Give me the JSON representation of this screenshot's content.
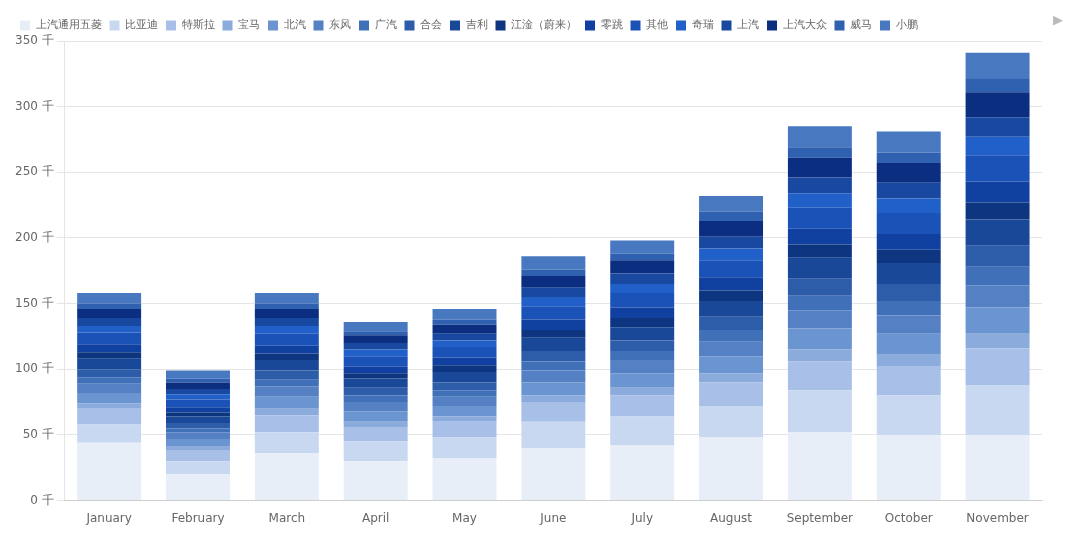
{
  "chart_data": {
    "type": "bar",
    "stacked": true,
    "categories": [
      "January",
      "February",
      "March",
      "April",
      "May",
      "June",
      "July",
      "August",
      "September",
      "October",
      "November"
    ],
    "series": [
      {
        "name": "上汽通用五菱",
        "color": "#e8eef8",
        "values": [
          44,
          20,
          36,
          30,
          32,
          40,
          42,
          48,
          52,
          50,
          50
        ]
      },
      {
        "name": "比亚迪",
        "color": "#c8d8f0",
        "values": [
          14,
          10,
          16,
          15,
          16,
          20,
          22,
          24,
          32,
          30,
          38
        ]
      },
      {
        "name": "特斯拉",
        "color": "#a8c0e8",
        "values": [
          12,
          8,
          13,
          11,
          12,
          15,
          16,
          18,
          22,
          22,
          28
        ]
      },
      {
        "name": "宝马",
        "color": "#8aabdc",
        "values": [
          4,
          3,
          5,
          4,
          4,
          5,
          6,
          7,
          9,
          9,
          11
        ]
      },
      {
        "name": "北汽",
        "color": "#6b95d0",
        "values": [
          8,
          6,
          9,
          8,
          8,
          10,
          11,
          13,
          16,
          16,
          20
        ]
      },
      {
        "name": "东风",
        "color": "#5580c4",
        "values": [
          7,
          5,
          8,
          7,
          7,
          9,
          10,
          11,
          14,
          14,
          17
        ]
      },
      {
        "name": "广汽",
        "color": "#4070b8",
        "values": [
          5,
          3,
          5,
          5,
          5,
          7,
          7,
          9,
          11,
          11,
          14
        ]
      },
      {
        "name": "合会",
        "color": "#2d5da8",
        "values": [
          6,
          4,
          7,
          6,
          6,
          8,
          8,
          10,
          13,
          13,
          16
        ]
      },
      {
        "name": "吉利",
        "color": "#1a4898",
        "values": [
          8,
          5,
          8,
          7,
          8,
          10,
          10,
          12,
          16,
          16,
          20
        ]
      },
      {
        "name": "江淦（蔚来）",
        "color": "#0d3580",
        "values": [
          5,
          3,
          5,
          4,
          5,
          6,
          7,
          8,
          10,
          10,
          13
        ]
      },
      {
        "name": "零跳",
        "color": "#1040a0",
        "values": [
          6,
          4,
          6,
          5,
          6,
          8,
          8,
          10,
          12,
          12,
          16
        ]
      },
      {
        "name": "其他",
        "color": "#1a52b8",
        "values": [
          9,
          6,
          9,
          8,
          8,
          10,
          11,
          13,
          16,
          16,
          20
        ]
      },
      {
        "name": "奇瑞",
        "color": "#2060c8",
        "values": [
          5,
          4,
          6,
          5,
          5,
          7,
          7,
          9,
          11,
          11,
          14
        ]
      },
      {
        "name": "上汽",
        "color": "#1848a0",
        "values": [
          6,
          4,
          6,
          5,
          5,
          7,
          8,
          9,
          12,
          12,
          15
        ]
      },
      {
        "name": "上汽大众",
        "color": "#0c2e80",
        "values": [
          7,
          5,
          7,
          6,
          7,
          9,
          10,
          12,
          15,
          15,
          19
        ]
      },
      {
        "name": "威马",
        "color": "#3060b0",
        "values": [
          4,
          3,
          4,
          3,
          4,
          5,
          5,
          7,
          8,
          8,
          10
        ]
      },
      {
        "name": "小鹏",
        "color": "#4878c0",
        "values": [
          8,
          6,
          8,
          7,
          8,
          10,
          10,
          12,
          16,
          16,
          20
        ]
      }
    ],
    "ylim": [
      0,
      350
    ],
    "yticks": [
      {
        "value": 0,
        "label": "0 千"
      },
      {
        "value": 50,
        "label": "50 千"
      },
      {
        "value": 100,
        "label": "100 千"
      },
      {
        "value": 150,
        "label": "150 千"
      },
      {
        "value": 200,
        "label": "200 千"
      },
      {
        "value": 250,
        "label": "250 千"
      },
      {
        "value": 300,
        "label": "300 千"
      },
      {
        "value": 350,
        "label": "350 千"
      }
    ],
    "grid": true,
    "legend": "top left",
    "annotations": [
      "▶"
    ]
  }
}
